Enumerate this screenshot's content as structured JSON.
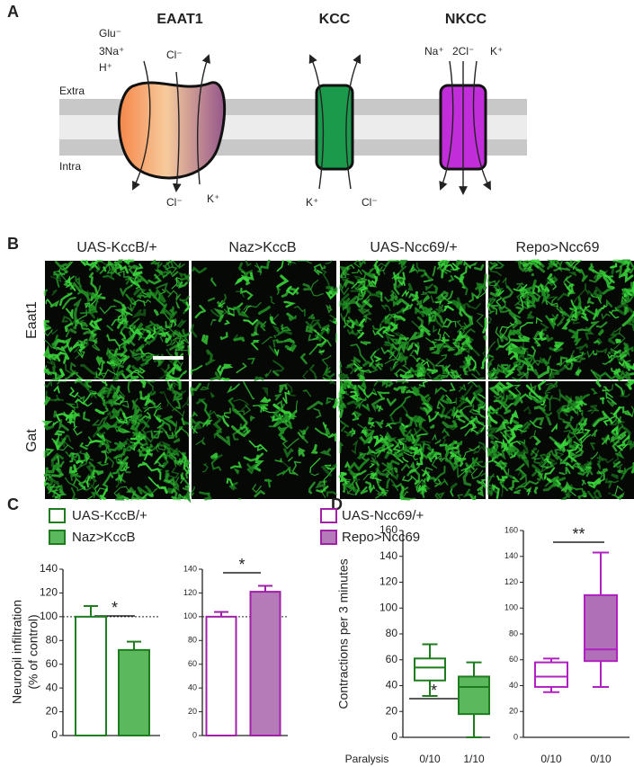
{
  "labels": {
    "a": "A",
    "b": "B",
    "c": "C",
    "d": "D"
  },
  "panel_a": {
    "transporters": [
      "EAAT1",
      "KCC",
      "NKCC"
    ],
    "sides": [
      "Extra",
      "Intra"
    ],
    "eaat1_in": [
      "Glu⁻",
      "3Na⁺",
      "H⁺"
    ],
    "eaat1_cl_top": "Cl⁻",
    "eaat1_cl_bottom": "Cl⁻",
    "eaat1_k": "K⁺",
    "kcc": [
      "K⁺",
      "Cl⁻"
    ],
    "nkcc": [
      "Na⁺",
      "2Cl⁻",
      "K⁺"
    ]
  },
  "panel_b": {
    "columns": [
      "UAS-KccB/+",
      "Naz>KccB",
      "UAS-Ncc69/+",
      "Repo>Ncc69"
    ],
    "rows": [
      "Eaat1",
      "Gat"
    ]
  },
  "chart_data": [
    {
      "type": "bar",
      "categories": [
        "UAS-KccB/+",
        "Naz>KccB"
      ],
      "values": [
        100,
        72
      ],
      "errors": [
        9,
        7
      ],
      "colors": [
        "#ffffff",
        "#5cb85c"
      ],
      "edge_color": "#1e7b1e",
      "ylabel": [
        "Neuropil infiltration",
        "(% of control)"
      ],
      "ylim": [
        0,
        140
      ],
      "yticks": [
        0,
        20,
        40,
        60,
        80,
        100,
        120,
        140
      ],
      "reference": 100,
      "annotation": "*"
    },
    {
      "type": "bar",
      "categories": [
        "UAS-Ncc69/+",
        "Repo>Ncc69"
      ],
      "values": [
        100,
        121
      ],
      "errors": [
        4,
        5
      ],
      "colors": [
        "#ffffff",
        "#b57ab8"
      ],
      "edge_color": "#a020a8",
      "ylim": [
        0,
        140
      ],
      "yticks": [
        0,
        20,
        40,
        60,
        80,
        100,
        120,
        140
      ],
      "reference": 100,
      "annotation": "*"
    },
    {
      "type": "box",
      "ylabel": "Contractions per 3 minutes",
      "ylim": [
        0,
        160
      ],
      "yticks": [
        0,
        20,
        40,
        60,
        80,
        100,
        120,
        140,
        160
      ],
      "boxes": [
        {
          "min": 32,
          "q1": 44,
          "median": 54,
          "q3": 61,
          "max": 72
        },
        {
          "min": 0,
          "q1": 18,
          "median": 39,
          "q3": 47,
          "max": 58
        }
      ],
      "colors": [
        "#ffffff",
        "#5cb85c"
      ],
      "edge_color": "#1e7b1e",
      "x_title": "Paralysis",
      "x_labels": [
        "0/10",
        "1/10"
      ],
      "annotation": "*"
    },
    {
      "type": "box",
      "ylim": [
        0,
        160
      ],
      "yticks": [
        0,
        20,
        40,
        60,
        80,
        100,
        120,
        140,
        160
      ],
      "boxes": [
        {
          "min": 35,
          "q1": 39,
          "median": 47,
          "q3": 58,
          "max": 61
        },
        {
          "min": 39,
          "q1": 59,
          "median": 68,
          "q3": 110,
          "max": 143
        }
      ],
      "colors": [
        "#ffffff",
        "#b070b8"
      ],
      "edge_color": "#b020c0",
      "x_labels": [
        "0/10",
        "0/10"
      ],
      "annotation": "**"
    }
  ]
}
